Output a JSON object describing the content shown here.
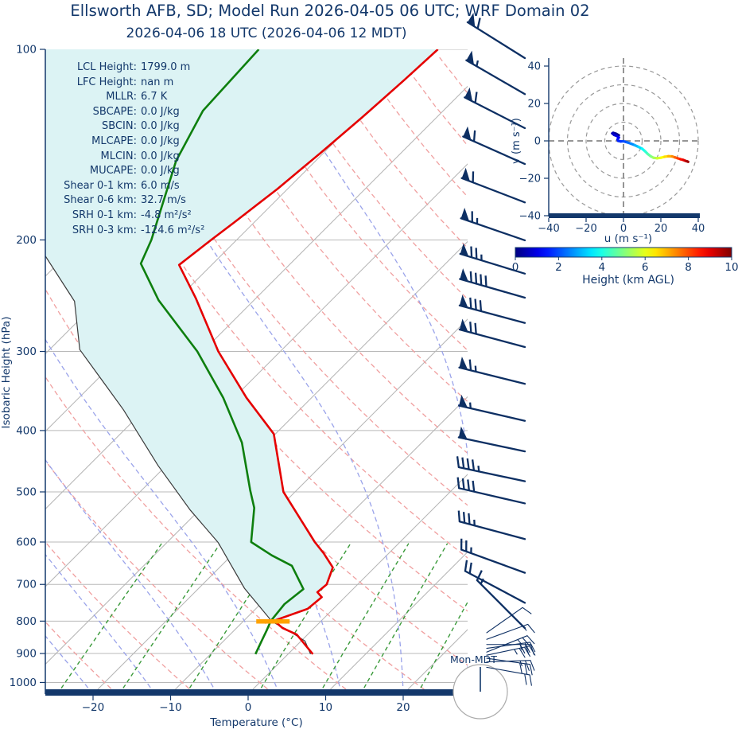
{
  "title": "Ellsworth AFB, SD; Model Run 2026-04-05 06 UTC; WRF Domain 02",
  "subtitle": "2026-04-06 18 UTC  (2026-04-06 12 MDT)",
  "watermark": "Mon-MDT",
  "colors": {
    "navy": "#13386b",
    "temperature": "#e50000",
    "dewpoint": "#0e7f0e",
    "parcel": "#3a3a3a",
    "cin_fill": "#dcf3f4",
    "dry_adiabat": "#f09f9f",
    "moist_adiabat": "#9aa3ea",
    "mixing_ratio": "#3a9a3a",
    "grid": "#b8b8b8",
    "lcl_marker": "#ffa200",
    "barb": "#0d2f63",
    "hodo_grid": "#999999"
  },
  "stats": {
    "rows": [
      {
        "label": "LCL Height:",
        "value": "1799.0 m"
      },
      {
        "label": "LFC Height:",
        "value": "nan m"
      },
      {
        "label": "MLLR:",
        "value": "6.7 K"
      },
      {
        "label": "SBCAPE:",
        "value": "0.0 J/kg"
      },
      {
        "label": "SBCIN:",
        "value": "0.0 J/kg"
      },
      {
        "label": "MLCAPE:",
        "value": "0.0 J/kg"
      },
      {
        "label": "MLCIN:",
        "value": "0.0 J/kg"
      },
      {
        "label": "MUCAPE:",
        "value": "0.0 J/kg"
      },
      {
        "label": "Shear 0-1 km:",
        "value": "6.0 m/s"
      },
      {
        "label": "Shear 0-6 km:",
        "value": "32.7 m/s"
      },
      {
        "label": "SRH 0-1 km:",
        "value": "-4.8 m²/s²"
      },
      {
        "label": "SRH 0-3 km:",
        "value": "-124.6 m²/s²"
      }
    ]
  },
  "skewt": {
    "ylabel": "Isobaric Height (hPa)",
    "xlabel": "Temperature (°C)",
    "pressure_ticks": [
      100,
      200,
      300,
      400,
      500,
      600,
      700,
      800,
      900,
      1000
    ],
    "temp_ticks": [
      -20,
      -10,
      0,
      10,
      20
    ]
  },
  "hodograph": {
    "xlabel": "u (m s⁻¹)",
    "ylabel": "v (m s⁻¹)",
    "u_ticks": [
      -40,
      -20,
      0,
      20,
      40
    ],
    "v_ticks": [
      -40,
      -20,
      0,
      20,
      40
    ],
    "ring_radii": [
      10,
      20,
      30,
      40
    ]
  },
  "colorbar": {
    "label": "Height (km AGL)",
    "ticks": [
      0,
      2,
      4,
      6,
      8,
      10
    ],
    "min": 0,
    "max": 10
  },
  "chart_data": {
    "type": "skewt-logp",
    "pressure_unit": "hPa",
    "temperature_unit": "degC",
    "pressure_range": [
      100,
      1043
    ],
    "temperature_axis_range": [
      -25,
      28
    ],
    "temperature_profile": [
      [
        902,
        3.2
      ],
      [
        840,
        -1.4
      ],
      [
        820,
        -4.1
      ],
      [
        799,
        -6.1
      ],
      [
        765,
        -3.3
      ],
      [
        733,
        -3.0
      ],
      [
        720,
        -4.2
      ],
      [
        700,
        -4.0
      ],
      [
        658,
        -5.4
      ],
      [
        625,
        -8.4
      ],
      [
        600,
        -11.0
      ],
      [
        500,
        -21.5
      ],
      [
        405,
        -30.2
      ],
      [
        355,
        -38.4
      ],
      [
        300,
        -48.0
      ],
      [
        247,
        -57.8
      ],
      [
        219,
        -64.2
      ],
      [
        200,
        -63.3
      ],
      [
        188,
        -62.6
      ],
      [
        166,
        -61.3
      ],
      [
        146,
        -60.4
      ],
      [
        128,
        -59.6
      ],
      [
        112,
        -59.0
      ],
      [
        100,
        -58.6
      ]
    ],
    "dewpoint_profile": [
      [
        902,
        -4.2
      ],
      [
        860,
        -5.1
      ],
      [
        828,
        -5.8
      ],
      [
        799,
        -6.5
      ],
      [
        752,
        -6.9
      ],
      [
        712,
        -6.4
      ],
      [
        654,
        -10.9
      ],
      [
        630,
        -14.8
      ],
      [
        600,
        -19.2
      ],
      [
        530,
        -23.2
      ],
      [
        497,
        -26.0
      ],
      [
        418,
        -33.2
      ],
      [
        355,
        -41.4
      ],
      [
        300,
        -50.7
      ],
      [
        249,
        -62.3
      ],
      [
        218,
        -69.3
      ],
      [
        200,
        -71.0
      ],
      [
        150,
        -78.0
      ],
      [
        125,
        -81.0
      ],
      [
        100,
        -81.7
      ]
    ],
    "parcel_profile": [
      [
        902,
        2.9
      ],
      [
        860,
        0.5
      ],
      [
        825,
        -3.3
      ],
      [
        802,
        -6.2
      ],
      [
        710,
        -14.1
      ],
      [
        601,
        -23.4
      ],
      [
        534,
        -31.2
      ],
      [
        454,
        -41.1
      ],
      [
        371,
        -52.7
      ],
      [
        298,
        -66.1
      ],
      [
        250,
        -73.0
      ],
      [
        200,
        -86.0
      ],
      [
        160,
        -100.0
      ],
      [
        120,
        -118.0
      ]
    ],
    "lcl": {
      "pressure": 801,
      "temperature": -6.15,
      "height_m": 1799.0
    },
    "wind_barbs": [
      {
        "p": 100,
        "speed_ms": 30,
        "dir_deg": 302,
        "thin": false
      },
      {
        "p": 114,
        "speed_ms": 27.5,
        "dir_deg": 300,
        "thin": false
      },
      {
        "p": 129,
        "speed_ms": 30,
        "dir_deg": 297,
        "thin": false
      },
      {
        "p": 147,
        "speed_ms": 30,
        "dir_deg": 294,
        "thin": false
      },
      {
        "p": 169,
        "speed_ms": 30,
        "dir_deg": 291,
        "thin": false
      },
      {
        "p": 194,
        "speed_ms": 32.5,
        "dir_deg": 289,
        "thin": false
      },
      {
        "p": 219,
        "speed_ms": 37.5,
        "dir_deg": 287,
        "thin": false
      },
      {
        "p": 239,
        "speed_ms": 45,
        "dir_deg": 286,
        "thin": false
      },
      {
        "p": 262,
        "speed_ms": 40,
        "dir_deg": 285,
        "thin": false
      },
      {
        "p": 286,
        "speed_ms": 35,
        "dir_deg": 285,
        "thin": false
      },
      {
        "p": 327,
        "speed_ms": 32.5,
        "dir_deg": 284,
        "thin": false
      },
      {
        "p": 374,
        "speed_ms": 27.5,
        "dir_deg": 283,
        "thin": false
      },
      {
        "p": 418,
        "speed_ms": 25,
        "dir_deg": 282,
        "thin": false
      },
      {
        "p": 466,
        "speed_ms": 22.5,
        "dir_deg": 282,
        "thin": false
      },
      {
        "p": 505,
        "speed_ms": 20,
        "dir_deg": 283,
        "thin": false
      },
      {
        "p": 575,
        "speed_ms": 17.5,
        "dir_deg": 285,
        "thin": false
      },
      {
        "p": 650,
        "speed_ms": 12.5,
        "dir_deg": 290,
        "thin": false
      },
      {
        "p": 725,
        "speed_ms": 10,
        "dir_deg": 298,
        "thin": false
      },
      {
        "p": 795,
        "speed_ms": 7.5,
        "dir_deg": 315,
        "thin": false
      },
      {
        "p": 820,
        "speed_ms": 5,
        "dir_deg": 55,
        "thin": true
      },
      {
        "p": 840,
        "speed_ms": 7.5,
        "dir_deg": 70,
        "thin": true
      },
      {
        "p": 856,
        "speed_ms": 12.5,
        "dir_deg": 90,
        "thin": true
      },
      {
        "p": 868,
        "speed_ms": 15,
        "dir_deg": 82,
        "thin": true
      },
      {
        "p": 880,
        "speed_ms": 12.5,
        "dir_deg": 68,
        "thin": true
      },
      {
        "p": 890,
        "speed_ms": 17.5,
        "dir_deg": 78,
        "thin": true
      },
      {
        "p": 900,
        "speed_ms": 15,
        "dir_deg": 98,
        "thin": true
      },
      {
        "p": 912,
        "speed_ms": 12.5,
        "dir_deg": 88,
        "thin": true
      },
      {
        "p": 930,
        "speed_ms": 10,
        "dir_deg": 100,
        "thin": true
      }
    ],
    "hodograph_trace_uvh": [
      [
        -2.5,
        3,
        0
      ],
      [
        -4,
        3.8,
        0.2
      ],
      [
        -5.5,
        4.3,
        0.4
      ],
      [
        -6,
        4,
        0.6
      ],
      [
        -5,
        3.2,
        0.8
      ],
      [
        -3.5,
        2.6,
        1
      ],
      [
        -2.5,
        1.8,
        1.2
      ],
      [
        -3.2,
        0.8,
        1.4
      ],
      [
        -2.8,
        0,
        1.6
      ],
      [
        -1.5,
        -0.3,
        1.8
      ],
      [
        0,
        -0.2,
        2
      ],
      [
        2,
        -0.8,
        2.3
      ],
      [
        4,
        -1.5,
        2.6
      ],
      [
        6,
        -2.3,
        3
      ],
      [
        8,
        -3.2,
        3.4
      ],
      [
        10,
        -4.2,
        3.8
      ],
      [
        11.5,
        -5.5,
        4.2
      ],
      [
        13,
        -7,
        4.6
      ],
      [
        14.5,
        -8.2,
        5
      ],
      [
        16,
        -9,
        5.4
      ],
      [
        18,
        -9.3,
        5.8
      ],
      [
        20,
        -9,
        6.2
      ],
      [
        22,
        -8.5,
        6.6
      ],
      [
        24,
        -8.2,
        7
      ],
      [
        26,
        -8.3,
        7.4
      ],
      [
        27.5,
        -8.8,
        7.8
      ],
      [
        29,
        -9.3,
        8.2
      ],
      [
        30.5,
        -9.8,
        8.6
      ],
      [
        32,
        -10.2,
        9
      ],
      [
        33.2,
        -10.7,
        9.4
      ],
      [
        34.2,
        -11,
        9.7
      ],
      [
        34.6,
        -11.2,
        10
      ]
    ]
  }
}
